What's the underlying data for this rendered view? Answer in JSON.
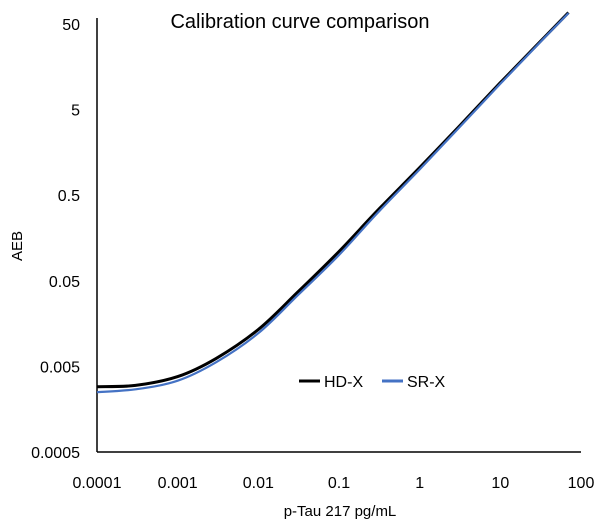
{
  "chart_data": {
    "type": "line",
    "title": "Calibration curve comparison",
    "xlabel": "p-Tau 217 pg/mL",
    "ylabel": "AEB",
    "x_scale": "log",
    "y_scale": "log",
    "xlim": [
      0.0001,
      100
    ],
    "ylim": [
      0.0005,
      50
    ],
    "x_ticks": [
      "0.0001",
      "0.001",
      "0.01",
      "0.1",
      "1",
      "10",
      "100"
    ],
    "y_ticks": [
      "0.0005",
      "0.005",
      "0.05",
      "0.5",
      "5",
      "50"
    ],
    "grid": false,
    "legend_position": "center-right",
    "series": [
      {
        "name": "HD-X",
        "color": "#000000",
        "x": [
          0.0001,
          0.0003,
          0.001,
          0.003,
          0.01,
          0.03,
          0.1,
          0.3,
          1,
          3,
          10,
          30,
          70
        ],
        "y": [
          0.0029,
          0.003,
          0.0038,
          0.0062,
          0.0135,
          0.036,
          0.11,
          0.33,
          1.05,
          3.1,
          10.3,
          30,
          68
        ]
      },
      {
        "name": "SR-X",
        "color": "#4472C4",
        "x": [
          0.0001,
          0.0003,
          0.001,
          0.003,
          0.01,
          0.03,
          0.1,
          0.3,
          1,
          3,
          10,
          30,
          70
        ],
        "y": [
          0.0025,
          0.0027,
          0.0034,
          0.0056,
          0.0122,
          0.033,
          0.1,
          0.31,
          1.0,
          3.0,
          10.0,
          29.5,
          67
        ]
      }
    ]
  }
}
